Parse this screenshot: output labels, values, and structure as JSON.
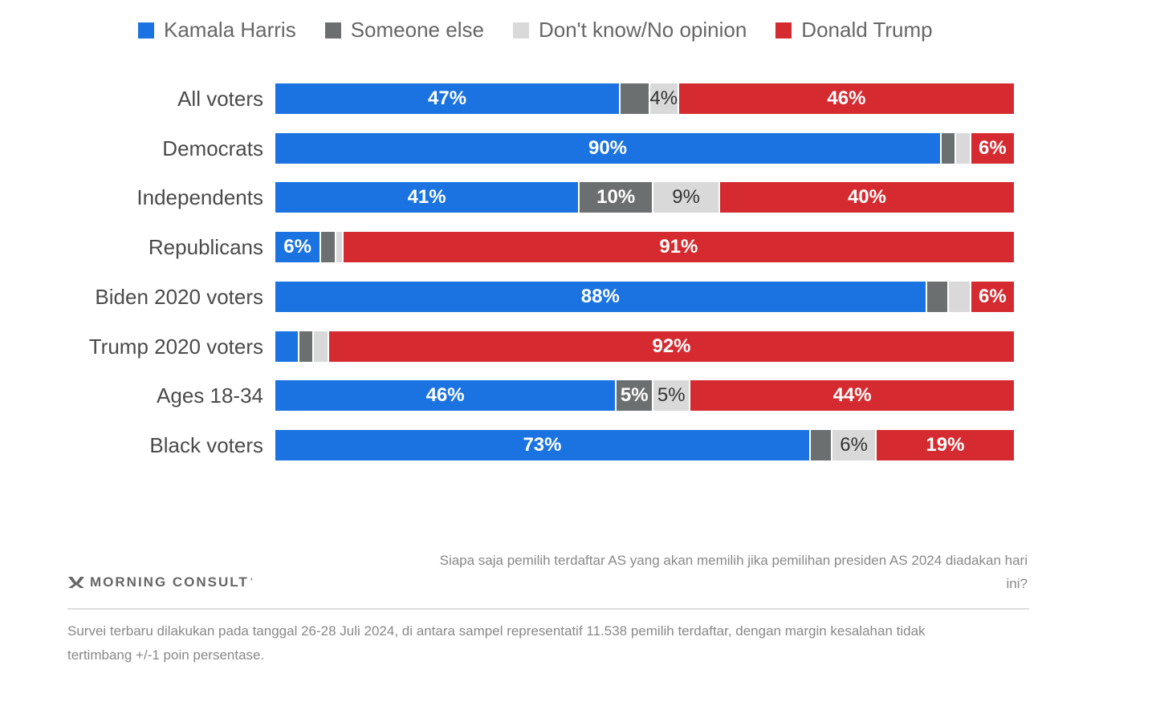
{
  "colors": {
    "harris": "#1a73e0",
    "someone": "#6c6f70",
    "dk": "#d9d9d9",
    "trump": "#d52b30"
  },
  "chart_data": {
    "type": "bar",
    "orientation": "horizontal",
    "stacked": true,
    "normalized": true,
    "title": "",
    "xlabel": "",
    "ylabel": "",
    "xlim": [
      0,
      100
    ],
    "legend_position": "top",
    "categories": [
      "All voters",
      "Democrats",
      "Independents",
      "Republicans",
      "Biden 2020 voters",
      "Trump 2020 voters",
      "Ages 18-34",
      "Black voters"
    ],
    "series": [
      {
        "name": "Kamala Harris",
        "key": "harris",
        "values": [
          47,
          90,
          41,
          6,
          88,
          3,
          46,
          73
        ],
        "labels": [
          "47%",
          "90%",
          "41%",
          "6%",
          "88%",
          "",
          "46%",
          "73%"
        ]
      },
      {
        "name": "Someone else",
        "key": "someone",
        "values": [
          4,
          2,
          10,
          2,
          3,
          2,
          5,
          3
        ],
        "labels": [
          "",
          "",
          "10%",
          "",
          "",
          "",
          "5%",
          ""
        ]
      },
      {
        "name": "Don't know/No opinion",
        "key": "dk",
        "values": [
          4,
          2,
          9,
          1,
          3,
          2,
          5,
          6
        ],
        "labels": [
          "4%",
          "",
          "9%",
          "",
          "",
          "",
          "5%",
          "6%"
        ]
      },
      {
        "name": "Donald Trump",
        "key": "trump",
        "values": [
          46,
          6,
          40,
          91,
          6,
          92,
          44,
          19
        ],
        "labels": [
          "46%",
          "6%",
          "40%",
          "91%",
          "6%",
          "92%",
          "44%",
          "19%"
        ]
      }
    ]
  },
  "brand": {
    "name": "MORNING CONSULT",
    "mark": "ʼ"
  },
  "question": "Siapa saja pemilih terdaftar AS yang akan memilih jika pemilihan presiden AS 2024 diadakan hari ini?",
  "footnote": "Survei terbaru dilakukan pada tanggal 26-28 Juli 2024, di antara sampel representatif 11.538 pemilih terdaftar, dengan margin kesalahan tidak tertimbang +/-1 poin persentase."
}
